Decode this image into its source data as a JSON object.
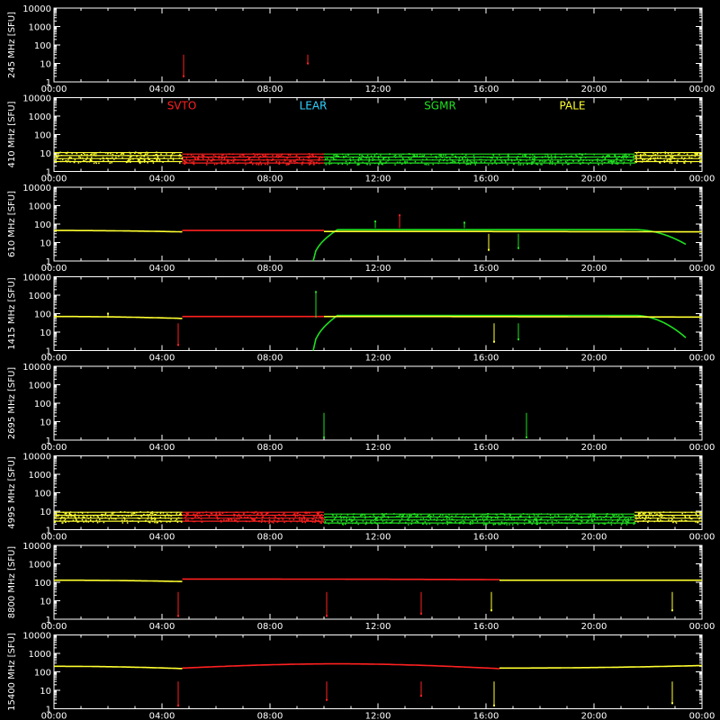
{
  "chart_data": {
    "type": "scatter",
    "x_ticks": [
      "00:00",
      "04:00",
      "08:00",
      "12:00",
      "16:00",
      "20:00",
      "00:00"
    ],
    "y_ticks": [
      "10000",
      "1000",
      "100",
      "10",
      "1"
    ],
    "ylim": [
      1,
      10000
    ],
    "y_scale": "log",
    "xlim_hours": [
      0,
      24
    ],
    "legend": [
      {
        "name": "SVTO",
        "color": "#ff2020"
      },
      {
        "name": "LEAR",
        "color": "#30d0ff"
      },
      {
        "name": "SGMR",
        "color": "#20e020"
      },
      {
        "name": "PALE",
        "color": "#ffff30"
      }
    ],
    "panels": [
      {
        "ylabel": "245 MHz [SFU]",
        "kind": "sparse",
        "spikes": [
          {
            "t": 4.8,
            "v": 2,
            "c": "#ff2020"
          },
          {
            "t": 9.4,
            "v": 10,
            "c": "#ff2020"
          }
        ]
      },
      {
        "ylabel": "410 MHz [SFU]",
        "kind": "noise",
        "legend": true,
        "segments": [
          {
            "from": 0.0,
            "to": 4.75,
            "color": "#ffff30",
            "level": 6
          },
          {
            "from": 4.75,
            "to": 10.0,
            "color": "#ff2020",
            "level": 5
          },
          {
            "from": 10.0,
            "to": 21.5,
            "color": "#20e020",
            "level": 5
          },
          {
            "from": 21.5,
            "to": 24.0,
            "color": "#ffff30",
            "level": 6
          }
        ]
      },
      {
        "ylabel": "610 MHz [SFU]",
        "kind": "flux",
        "segments": [
          {
            "from": 0.0,
            "to": 4.75,
            "color": "#ffff30",
            "start": 45,
            "end": 38
          },
          {
            "from": 4.75,
            "to": 10.0,
            "color": "#ff2020",
            "start": 45,
            "end": 45
          },
          {
            "from": 9.6,
            "to": 21.5,
            "color": "#20e020",
            "start": 1,
            "end": 50,
            "rise": 0.9
          },
          {
            "from": 21.5,
            "to": 23.4,
            "color": "#20e020",
            "start": 50,
            "end": 8
          },
          {
            "from": 10.0,
            "to": 24.0,
            "color": "#ffff30",
            "start": 40,
            "end": 38
          }
        ],
        "spikes": [
          {
            "t": 11.9,
            "v": 140,
            "c": "#20e020"
          },
          {
            "t": 12.8,
            "v": 300,
            "c": "#ff2020"
          },
          {
            "t": 15.2,
            "v": 120,
            "c": "#20e020"
          },
          {
            "t": 16.1,
            "v": 4,
            "c": "#ffff30"
          },
          {
            "t": 17.2,
            "v": 5,
            "c": "#20e020"
          }
        ]
      },
      {
        "ylabel": "1415 MHz [SFU]",
        "kind": "flux",
        "segments": [
          {
            "from": 0.0,
            "to": 4.75,
            "color": "#ffff30",
            "start": 70,
            "end": 55
          },
          {
            "from": 4.75,
            "to": 10.0,
            "color": "#ff2020",
            "start": 70,
            "end": 70
          },
          {
            "from": 9.6,
            "to": 21.5,
            "color": "#20e020",
            "start": 1,
            "end": 80,
            "rise": 0.9
          },
          {
            "from": 21.5,
            "to": 23.4,
            "color": "#20e020",
            "start": 80,
            "end": 5
          },
          {
            "from": 10.0,
            "to": 24.0,
            "color": "#ffff30",
            "start": 70,
            "end": 65
          }
        ],
        "spikes": [
          {
            "t": 2.0,
            "v": 100,
            "c": "#ffff30"
          },
          {
            "t": 4.6,
            "v": 2,
            "c": "#ff2020"
          },
          {
            "t": 9.7,
            "v": 1500,
            "c": "#20e020"
          },
          {
            "t": 16.3,
            "v": 3,
            "c": "#ffff30"
          },
          {
            "t": 17.2,
            "v": 4,
            "c": "#20e020"
          }
        ]
      },
      {
        "ylabel": "2695 MHz [SFU]",
        "kind": "sparse",
        "spikes": [
          {
            "t": 10.0,
            "v": 1.4,
            "c": "#20e020"
          },
          {
            "t": 17.5,
            "v": 1.4,
            "c": "#20e020"
          }
        ]
      },
      {
        "ylabel": "4995 MHz [SFU]",
        "kind": "noise",
        "segments": [
          {
            "from": 0.0,
            "to": 4.75,
            "color": "#ffff30",
            "level": 5
          },
          {
            "from": 4.75,
            "to": 10.0,
            "color": "#ff2020",
            "level": 5
          },
          {
            "from": 10.0,
            "to": 21.5,
            "color": "#20e020",
            "level": 4
          },
          {
            "from": 21.5,
            "to": 24.0,
            "color": "#ffff30",
            "level": 5
          }
        ]
      },
      {
        "ylabel": "8800 MHz [SFU]",
        "kind": "flux",
        "segments": [
          {
            "from": 0.0,
            "to": 4.75,
            "color": "#ffff30",
            "start": 130,
            "end": 110
          },
          {
            "from": 4.75,
            "to": 16.5,
            "color": "#ff2020",
            "start": 150,
            "end": 140
          },
          {
            "from": 16.5,
            "to": 24.0,
            "color": "#ffff30",
            "start": 130,
            "end": 130
          }
        ],
        "spikes": [
          {
            "t": 4.6,
            "v": 1.5,
            "c": "#ff2020"
          },
          {
            "t": 10.1,
            "v": 1.5,
            "c": "#ff2020"
          },
          {
            "t": 13.6,
            "v": 2,
            "c": "#ff2020"
          },
          {
            "t": 16.2,
            "v": 3,
            "c": "#ffff30"
          },
          {
            "t": 22.9,
            "v": 3,
            "c": "#ffff30"
          }
        ]
      },
      {
        "ylabel": "15400 MHz [SFU]",
        "kind": "flux",
        "segments": [
          {
            "from": 0.0,
            "to": 4.75,
            "color": "#ffff30",
            "start": 200,
            "end": 150
          },
          {
            "from": 4.75,
            "to": 16.5,
            "color": "#ff2020",
            "start": 160,
            "end": 150,
            "bump": 280
          },
          {
            "from": 16.5,
            "to": 24.0,
            "color": "#ffff30",
            "start": 160,
            "end": 220
          }
        ],
        "spikes": [
          {
            "t": 4.6,
            "v": 1.5,
            "c": "#ff2020"
          },
          {
            "t": 10.1,
            "v": 3,
            "c": "#ff2020"
          },
          {
            "t": 13.6,
            "v": 5,
            "c": "#ff2020"
          },
          {
            "t": 16.3,
            "v": 1.5,
            "c": "#ffff30"
          },
          {
            "t": 22.9,
            "v": 2,
            "c": "#ffff30"
          }
        ]
      }
    ]
  }
}
